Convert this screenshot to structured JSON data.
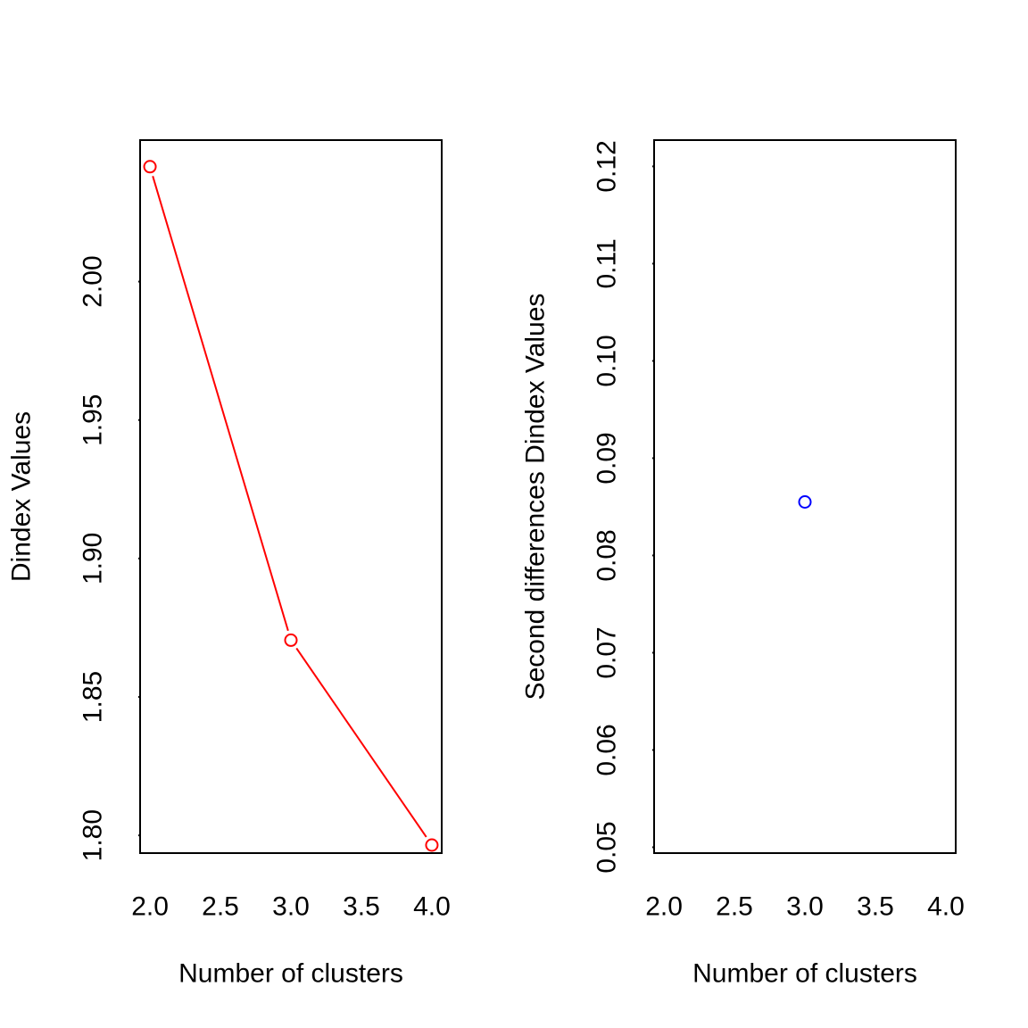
{
  "chart_data": [
    {
      "type": "line",
      "title": "",
      "xlabel": "Number of clusters",
      "ylabel": "Dindex Values",
      "xlim": [
        1.93,
        4.07
      ],
      "ylim": [
        1.7936,
        2.0511
      ],
      "x_ticks": [
        "2.0",
        "2.5",
        "3.0",
        "3.5",
        "4.0"
      ],
      "y_ticks": [
        "1.80",
        "1.85",
        "1.90",
        "1.95",
        "2.00"
      ],
      "grid": false,
      "series": [
        {
          "color": "#ff0000",
          "marker": "open-circle",
          "x": [
            2,
            3,
            4
          ],
          "y": [
            2.0415,
            1.8705,
            1.7965
          ]
        }
      ]
    },
    {
      "type": "scatter",
      "title": "",
      "xlabel": "Number of clusters",
      "ylabel": "Second differences Dindex Values",
      "xlim": [
        1.93,
        4.07
      ],
      "ylim": [
        0.0494,
        0.1227
      ],
      "x_ticks": [
        "2.0",
        "2.5",
        "3.0",
        "3.5",
        "4.0"
      ],
      "y_ticks": [
        "0.05",
        "0.06",
        "0.07",
        "0.08",
        "0.09",
        "0.10",
        "0.11",
        "0.12"
      ],
      "grid": false,
      "series": [
        {
          "color": "#0000ff",
          "marker": "open-circle",
          "x": [
            3
          ],
          "y": [
            0.0855
          ]
        }
      ]
    }
  ]
}
